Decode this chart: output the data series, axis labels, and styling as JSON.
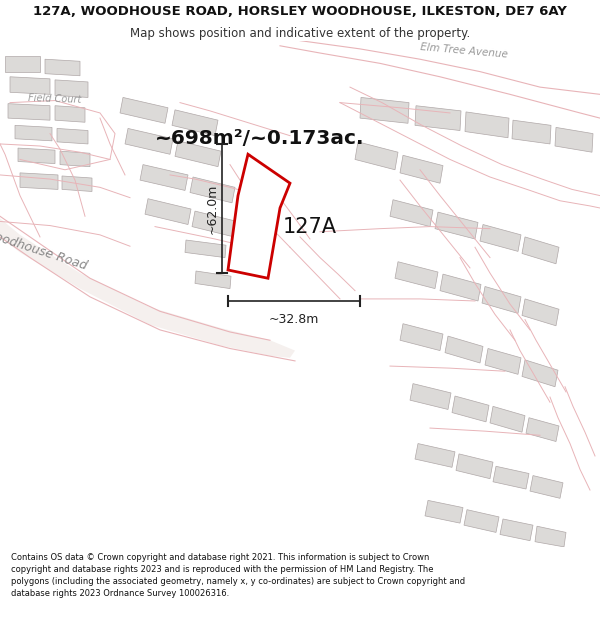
{
  "title_line1": "127A, WOODHOUSE ROAD, HORSLEY WOODHOUSE, ILKESTON, DE7 6AY",
  "title_line2": "Map shows position and indicative extent of the property.",
  "area_label": "~698m²/~0.173ac.",
  "plot_label": "127A",
  "dim_vertical": "~62.0m",
  "dim_horizontal": "~32.8m",
  "footer_text": "Contains OS data © Crown copyright and database right 2021. This information is subject to Crown copyright and database rights 2023 and is reproduced with the permission of HM Land Registry. The polygons (including the associated geometry, namely x, y co-ordinates) are subject to Crown copyright and database rights 2023 Ordnance Survey 100026316.",
  "bg_color": "#ffffff",
  "road_outline_color": "#e8b4b8",
  "road_fill_color": "#f8f0f0",
  "building_fill": "#dcdad8",
  "building_edge": "#b0a8a8",
  "plot_color": "#cc0000",
  "dim_color": "#222222",
  "text_color": "#888888",
  "street_label": "Woodhouse Road",
  "street_label2": "Elm Tree Avenue",
  "street_label3": "Field Court",
  "title_fontsize": 9.5,
  "subtitle_fontsize": 8.5,
  "footer_fontsize": 6.0
}
